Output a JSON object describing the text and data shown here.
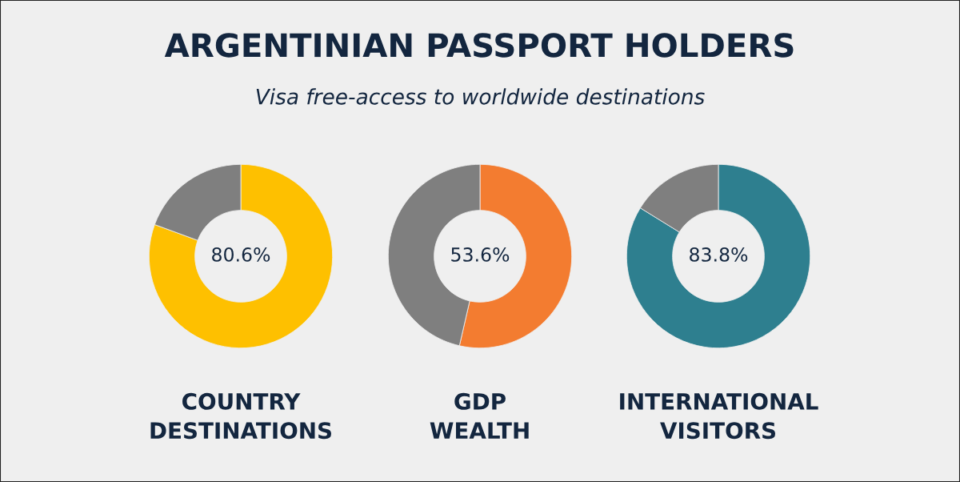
{
  "chart_data": [
    {
      "type": "donut",
      "title": "ARGENTINIAN PASSPORT HOLDERS",
      "subtitle": "Visa free-access to worldwide destinations",
      "xlabel": "COUNTRY DESTINATIONS",
      "categories": [
        null,
        null
      ],
      "values": [
        80.6,
        19.4
      ],
      "colors": [
        "#fec000",
        "#7f7f7f"
      ],
      "value_labels": [
        "80.6%",
        null
      ]
    },
    {
      "type": "donut",
      "xlabel": "GDP WEALTH",
      "categories": [
        null,
        null
      ],
      "values": [
        53.6,
        46.4
      ],
      "colors": [
        "#f37c30",
        "#7f7f7f"
      ],
      "value_labels": [
        "53.6%",
        null
      ]
    },
    {
      "type": "donut",
      "xlabel": "INTERNATIONAL VISITORS",
      "categories": [
        null,
        null
      ],
      "values": [
        83.8,
        16.2
      ],
      "colors": [
        "#2e7f8f",
        "#7f7f7f"
      ],
      "value_labels": [
        "83.8%",
        null
      ]
    }
  ]
}
